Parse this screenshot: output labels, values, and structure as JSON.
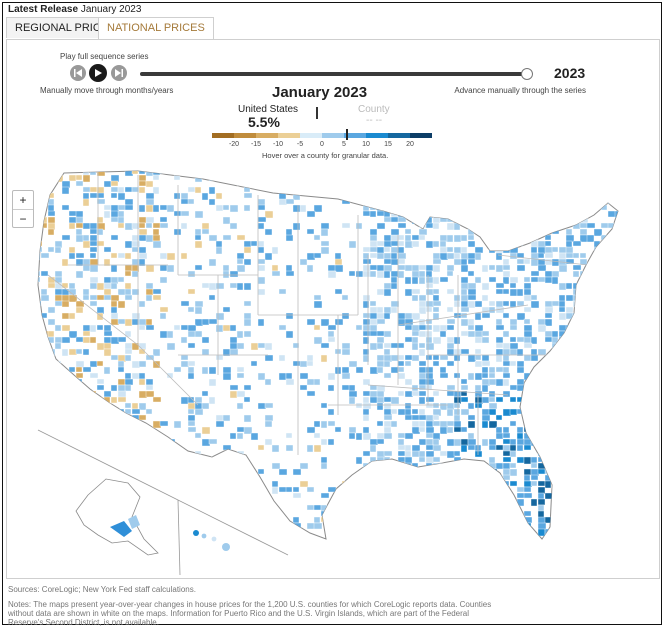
{
  "latest_release": {
    "label": "Latest Release",
    "value": "January 2023"
  },
  "tabs": [
    {
      "label": "REGIONAL PRICES",
      "active": false
    },
    {
      "label": "NATIONAL PRICES",
      "active": true
    }
  ],
  "player": {
    "play_label": "Play full sequence series",
    "manual_left": "Manually move through months/years",
    "manual_right": "Advance manually through the series",
    "year": "2023",
    "slider_position": 1.0
  },
  "readout": {
    "month": "January 2023",
    "us_label": "United States",
    "us_value": "5.5%",
    "county_label": "County",
    "county_value": "-- --"
  },
  "legend": {
    "colors": [
      "#a26d22",
      "#c08c3c",
      "#d8ad63",
      "#ebcf96",
      "#d9ecf8",
      "#9fcbec",
      "#5aa7e0",
      "#1a8ad0",
      "#14679f",
      "#0c3d66"
    ],
    "ticks": [
      "-20",
      "-15",
      "-10",
      "-5",
      "0",
      "5",
      "10",
      "15",
      "20"
    ],
    "current_value": 5.5
  },
  "hover_note": "Hover over a county for granular data.",
  "zoom": {
    "in": "+",
    "out": "−"
  },
  "sources": "Sources: CoreLogic; New York Fed staff calculations.",
  "notes": "Notes: The maps present year-over-year changes in house prices for the 1,200 U.S. counties for which CoreLogic reports data. Counties without data are shown in white on the maps. Information for Puerto Rico and the U.S. Virgin Islands, which are part of the Federal Reserve's Second District, is not available."
}
